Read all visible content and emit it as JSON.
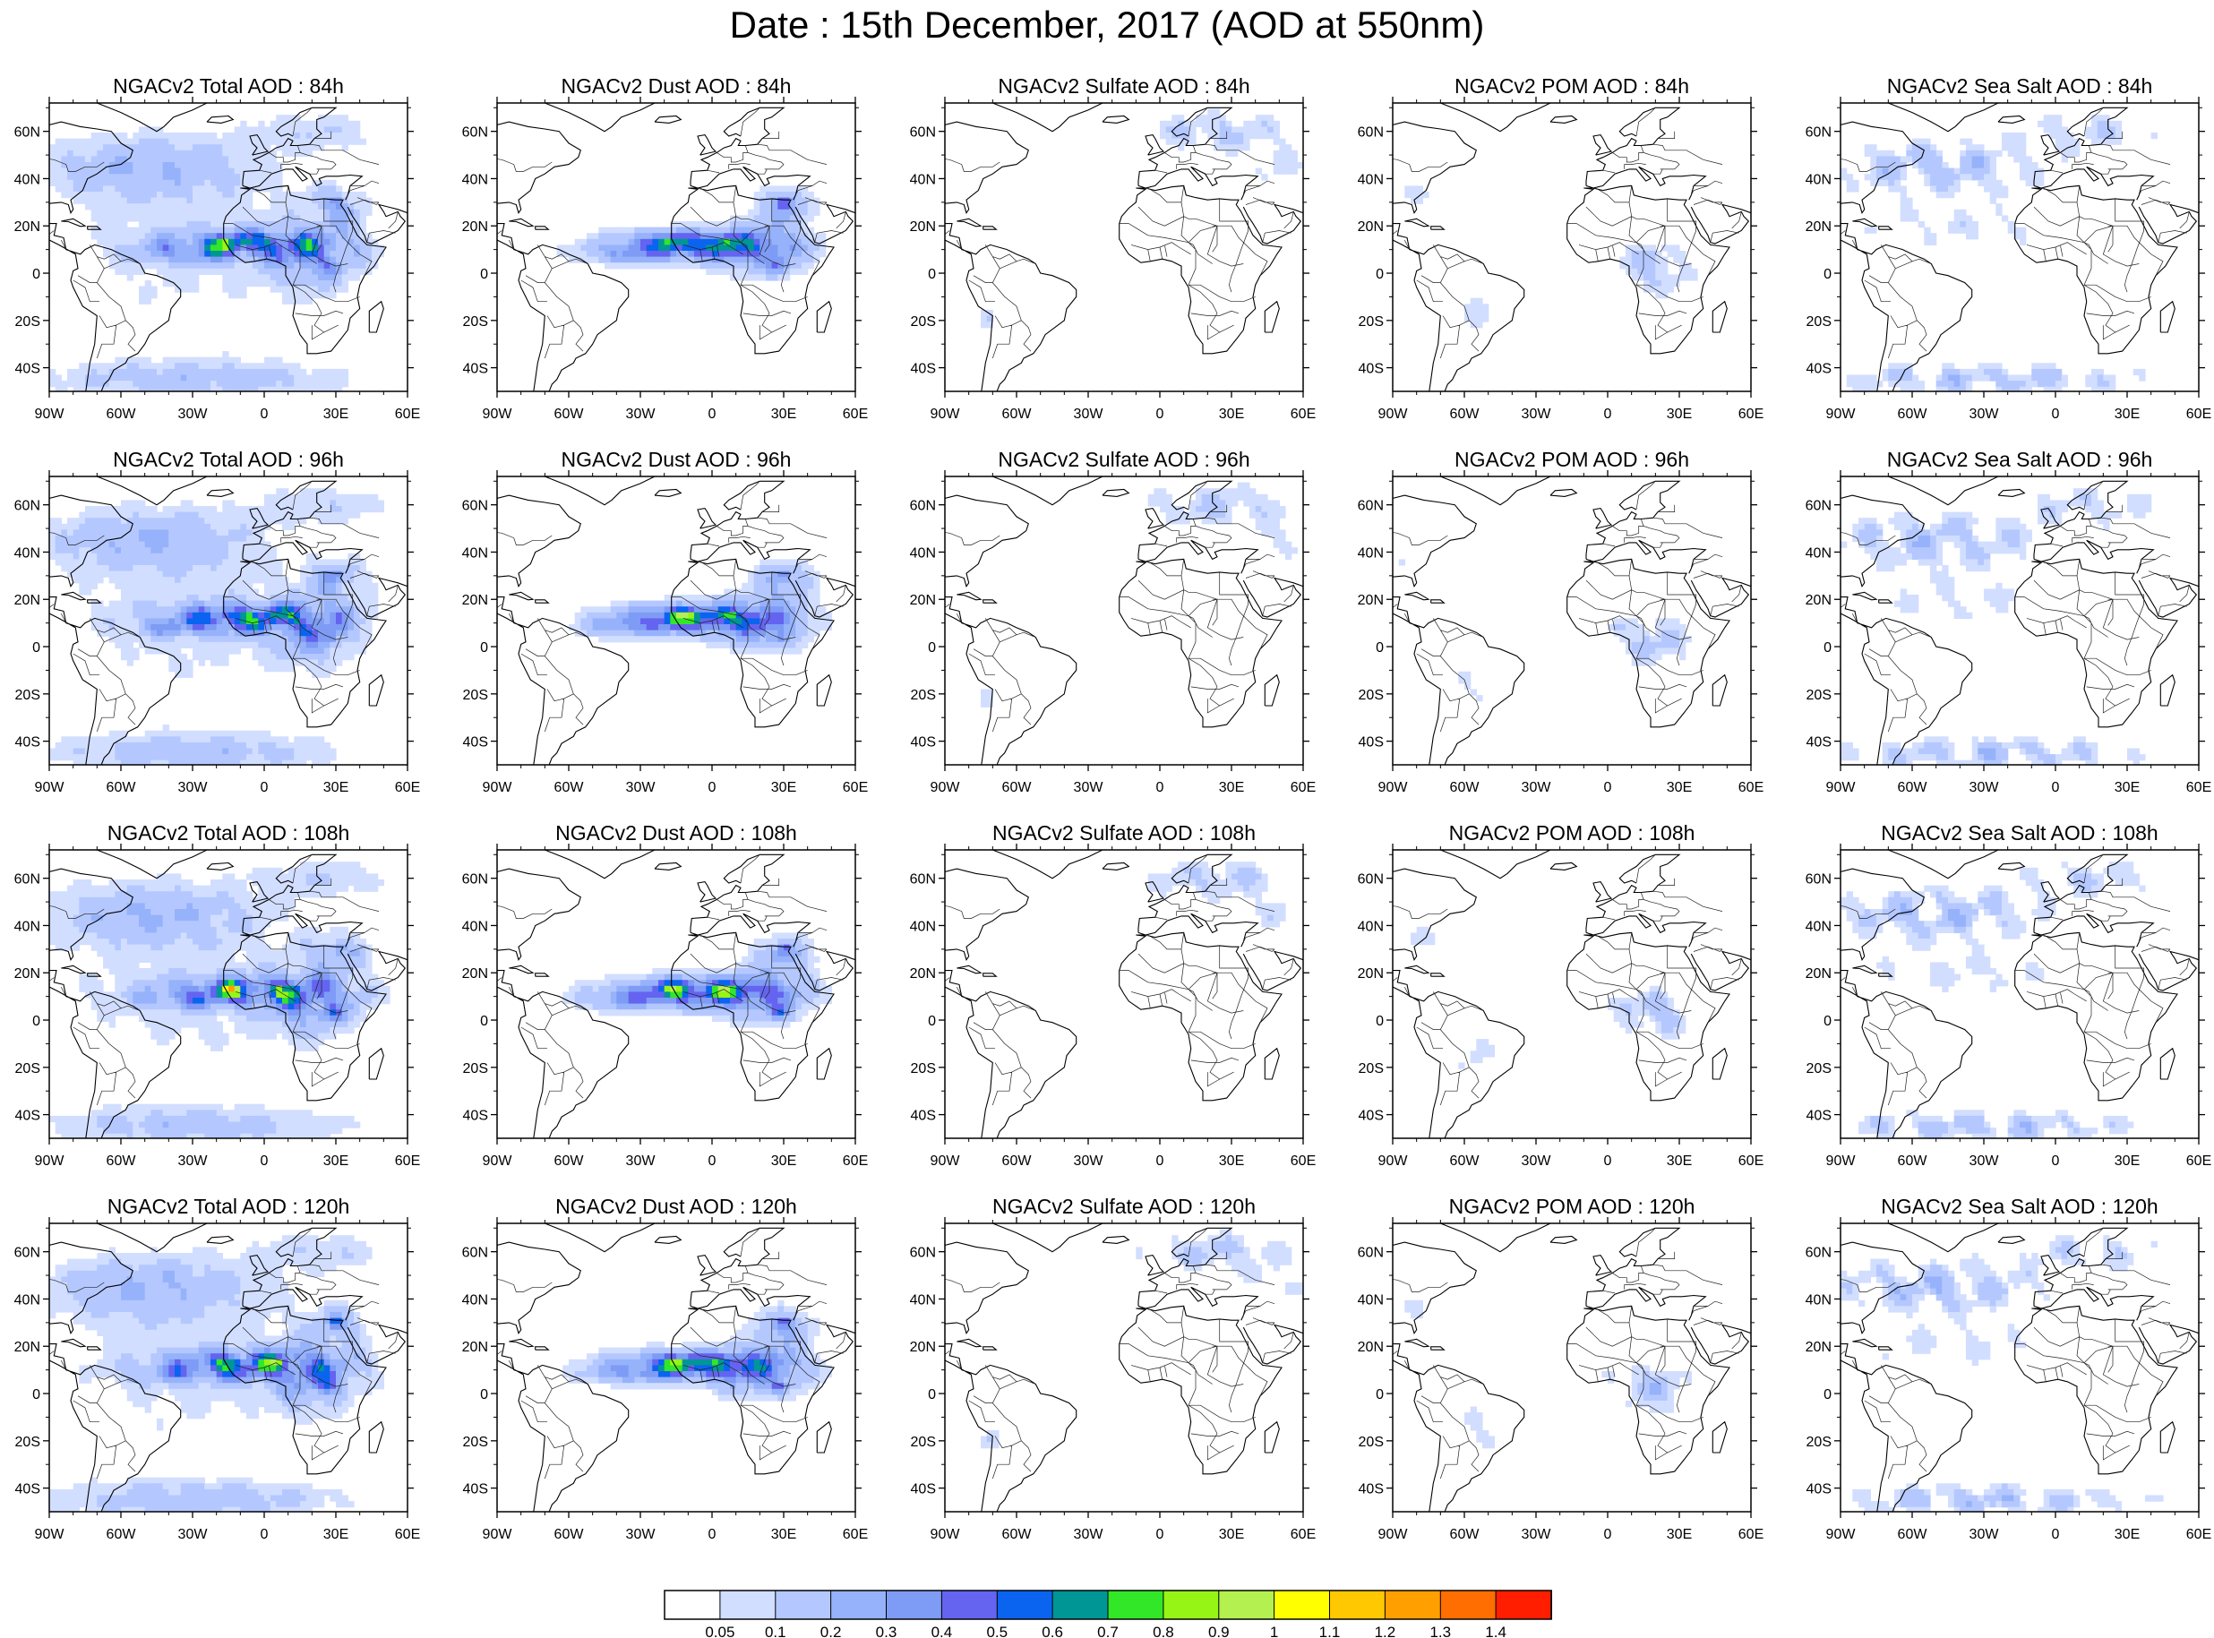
{
  "title": "Date : 15th December, 2017 (AOD at 550nm)",
  "rows": [
    {
      "panels": [
        {
          "title": "NGACv2 Total AOD : 84h",
          "type": "total"
        },
        {
          "title": "NGACv2 Dust AOD : 84h",
          "type": "dust"
        },
        {
          "title": "NGACv2 Sulfate AOD : 84h",
          "type": "sulfate"
        },
        {
          "title": "NGACv2 POM AOD : 84h",
          "type": "pom"
        },
        {
          "title": "NGACv2 Sea Salt AOD : 84h",
          "type": "seasalt"
        }
      ]
    },
    {
      "panels": [
        {
          "title": "NGACv2 Total AOD : 96h",
          "type": "total"
        },
        {
          "title": "NGACv2 Dust AOD : 96h",
          "type": "dust"
        },
        {
          "title": "NGACv2 Sulfate AOD : 96h",
          "type": "sulfate"
        },
        {
          "title": "NGACv2 POM AOD : 96h",
          "type": "pom"
        },
        {
          "title": "NGACv2 Sea Salt AOD : 96h",
          "type": "seasalt"
        }
      ]
    },
    {
      "panels": [
        {
          "title": "NGACv2 Total AOD : 108h",
          "type": "total"
        },
        {
          "title": "NGACv2 Dust AOD : 108h",
          "type": "dust"
        },
        {
          "title": "NGACv2 Sulfate AOD : 108h",
          "type": "sulfate"
        },
        {
          "title": "NGACv2 POM AOD : 108h",
          "type": "pom"
        },
        {
          "title": "NGACv2 Sea Salt AOD : 108h",
          "type": "seasalt"
        }
      ]
    },
    {
      "panels": [
        {
          "title": "NGACv2 Total AOD : 120h",
          "type": "total"
        },
        {
          "title": "NGACv2 Dust AOD : 120h",
          "type": "dust"
        },
        {
          "title": "NGACv2 Sulfate AOD : 120h",
          "type": "sulfate"
        },
        {
          "title": "NGACv2 POM AOD : 120h",
          "type": "pom"
        },
        {
          "title": "NGACv2 Sea Salt  AOD : 120h",
          "type": "seasalt"
        }
      ]
    }
  ],
  "map": {
    "lon_range": [
      -90,
      60
    ],
    "lat_range": [
      -50,
      72
    ],
    "lon_ticks": [
      "90W",
      "60W",
      "30W",
      "0",
      "30E",
      "60E"
    ],
    "lat_ticks": [
      "60N",
      "40N",
      "20N",
      "0",
      "20S",
      "40S"
    ]
  },
  "colorbar": {
    "colors": [
      "#ffffff",
      "#d2deff",
      "#b4c8ff",
      "#96b2fa",
      "#7e9bf5",
      "#6464f0",
      "#0a64f0",
      "#009696",
      "#32e628",
      "#96f514",
      "#b4f050",
      "#ffff00",
      "#ffc800",
      "#ffa000",
      "#ff6e00",
      "#ff1e00"
    ],
    "labels": [
      "0.05",
      "0.1",
      "0.2",
      "0.3",
      "0.4",
      "0.5",
      "0.6",
      "0.7",
      "0.8",
      "0.9",
      "1",
      "1.1",
      "1.2",
      "1.3",
      "1.4"
    ]
  }
}
